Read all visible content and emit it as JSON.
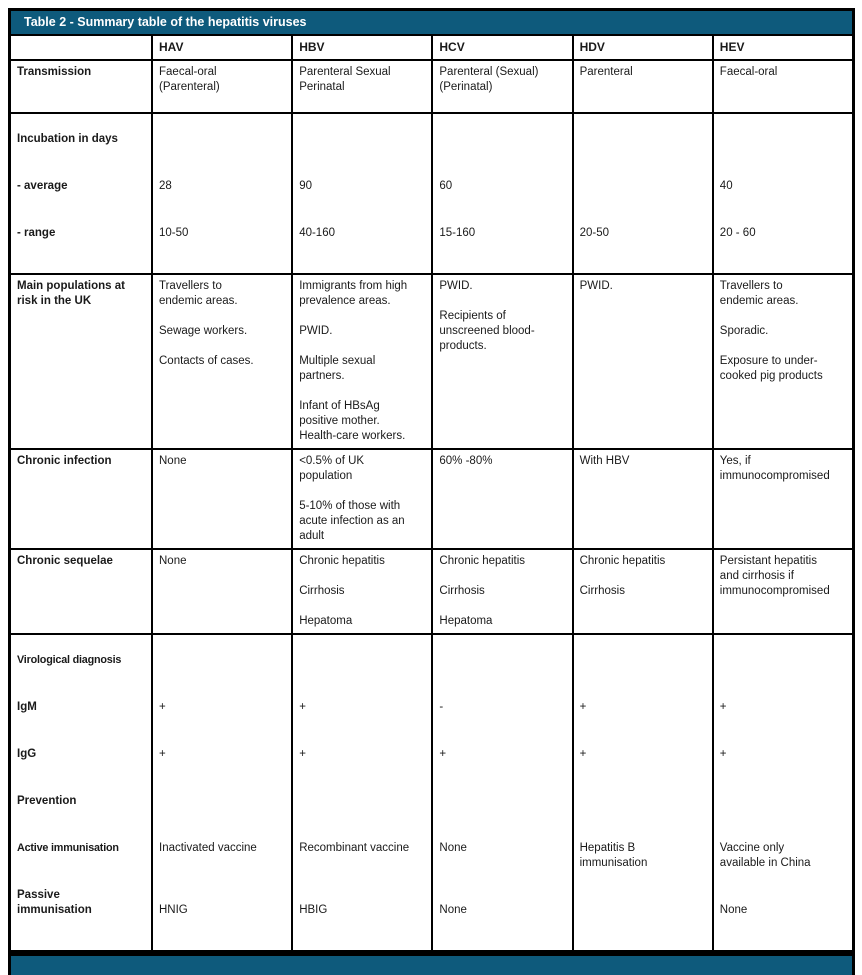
{
  "colors": {
    "accent_teal": "#0e5a7c",
    "border": "#000000",
    "text": "#1a1a1a",
    "title_text": "#ffffff"
  },
  "title_bar": "Table 2 - Summary table of the hepatitis viruses",
  "columns": [
    "",
    "HAV",
    "HBV",
    "HCV",
    "HDV",
    "HEV"
  ],
  "transmission": {
    "label": "Transmission",
    "hav": "Faecal-oral\n(Parenteral)",
    "hbv": "Parenteral Sexual\nPerinatal",
    "hcv": "Parenteral (Sexual)\n(Perinatal)",
    "hdv": "Parenteral",
    "hev": "Faecal-oral"
  },
  "incubation": {
    "label": "Incubation in days",
    "average_label": "- average",
    "range_label": "- range",
    "average": {
      "hav": "28",
      "hbv": "90",
      "hcv": "60",
      "hdv": "",
      "hev": "40"
    },
    "range": {
      "hav": "10-50",
      "hbv": "40-160",
      "hcv": "15-160",
      "hdv": "20-50",
      "hev": "20 - 60"
    }
  },
  "populations": {
    "label": "Main populations at\nrisk in the UK",
    "hav": "Travellers to\nendemic areas.\n\nSewage workers.\n\nContacts of cases.",
    "hbv": "Immigrants from high\nprevalence areas.\n\nPWID.\n\nMultiple sexual\npartners.\n\nInfant of HBsAg\npositive mother.\nHealth-care workers.",
    "hcv": "PWID.\n\nRecipients of\nunscreened blood-\nproducts.",
    "hdv": "PWID.",
    "hev": "Travellers to\nendemic areas.\n\nSporadic.\n\nExposure to under-\ncooked pig products"
  },
  "chronic_infection": {
    "label": "Chronic infection",
    "hav": "None",
    "hbv": "<0.5% of UK\npopulation\n\n5-10% of those with\nacute infection as an\nadult",
    "hcv": "60% -80%",
    "hdv": "With HBV",
    "hev": "Yes, if\nimmunocompromised"
  },
  "chronic_sequelae": {
    "label": "Chronic sequelae",
    "hav": "None",
    "hbv": "Chronic hepatitis\n\nCirrhosis\n\nHepatoma",
    "hcv": "Chronic hepatitis\n\nCirrhosis\n\nHepatoma",
    "hdv": "Chronic hepatitis\n\nCirrhosis",
    "hev": "Persistant hepatitis\nand cirrhosis if\nimmunocompromised"
  },
  "virology": {
    "label": "Virological diagnosis",
    "igm_label": "IgM",
    "igg_label": "IgG",
    "prevention_label": "Prevention",
    "active_label": "Active immunisation",
    "passive_label": "Passive\nimmunisation",
    "igm": {
      "hav": "+",
      "hbv": "+",
      "hcv": "-",
      "hdv": "+",
      "hev": "+"
    },
    "igg": {
      "hav": "+",
      "hbv": "+",
      "hcv": "+",
      "hdv": "+",
      "hev": "+"
    },
    "active": {
      "hav": "Inactivated vaccine",
      "hbv": "Recombinant vaccine",
      "hcv": "None",
      "hdv": "Hepatitis B\nimmunisation",
      "hev": "Vaccine only\navailable in China"
    },
    "passive": {
      "hav": "HNIG",
      "hbv": "HBIG",
      "hcv": "None",
      "hdv": "",
      "hev": "None"
    }
  }
}
